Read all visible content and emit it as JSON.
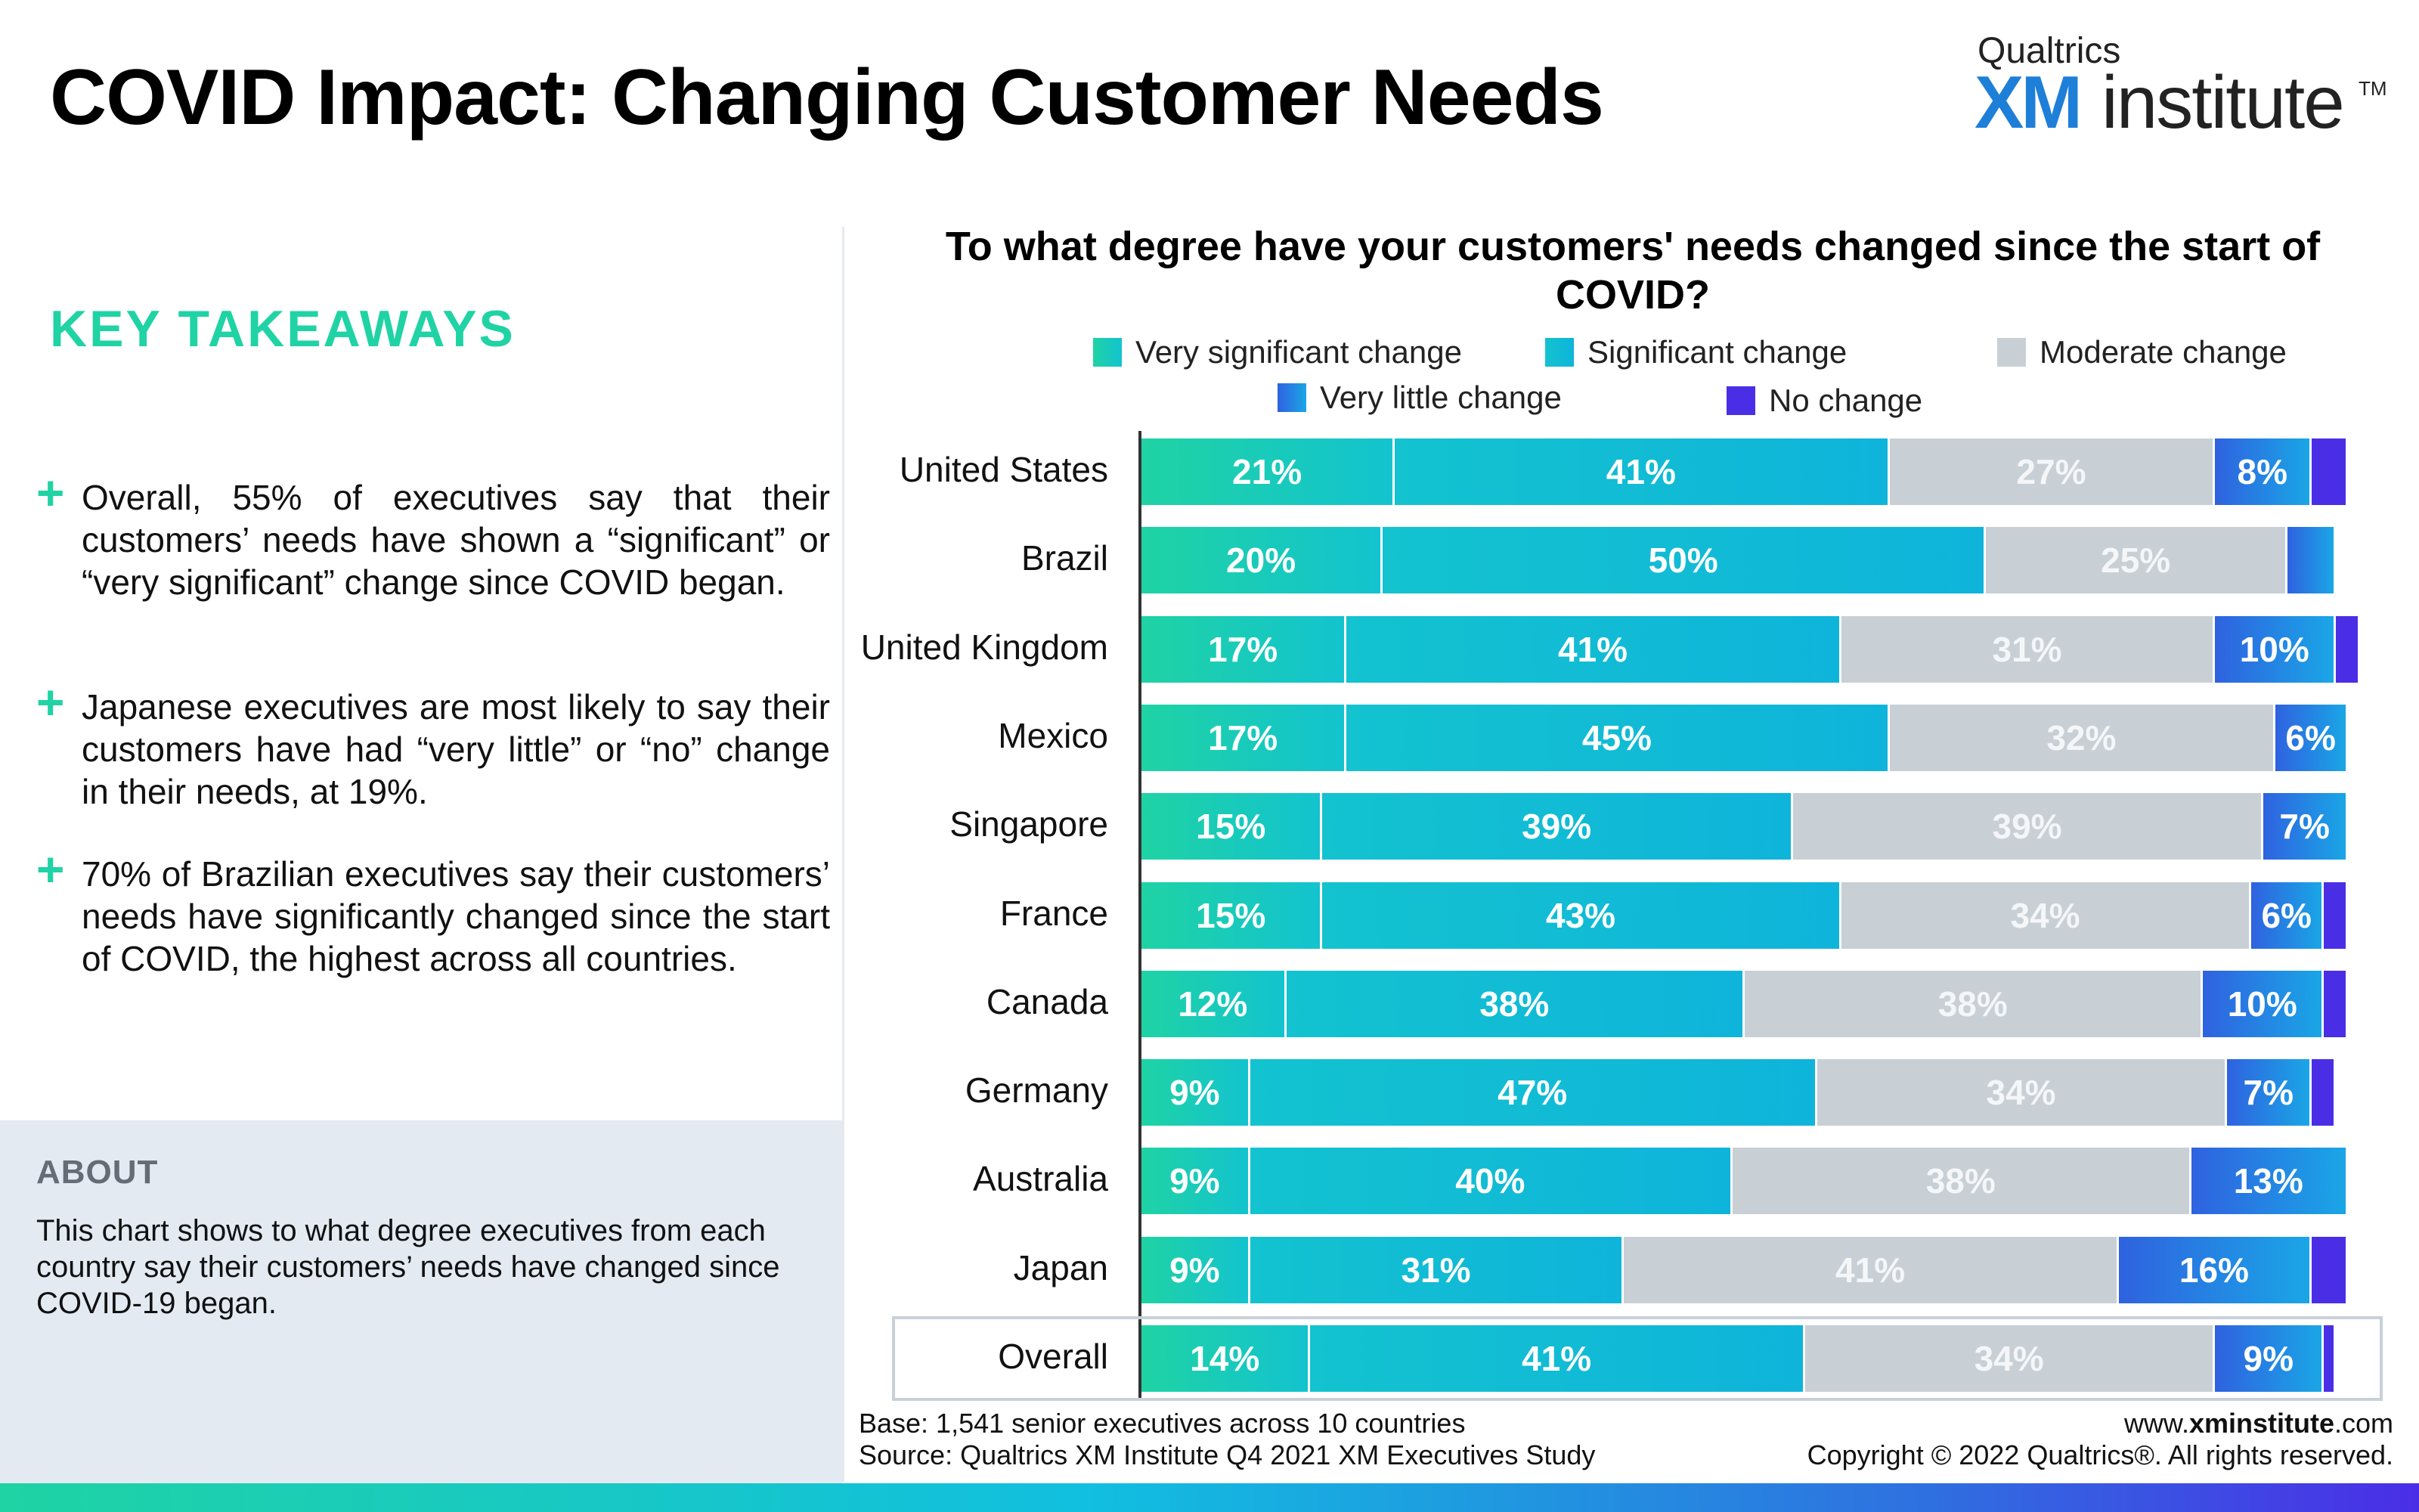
{
  "header": {
    "title": "COVID Impact: Changing Customer Needs",
    "logo_top": "Qualtrics",
    "logo_xm": "XM",
    "logo_institute": "institute",
    "logo_tm": "TM"
  },
  "takeaways": {
    "heading": "KEY TAKEAWAYS",
    "plus_glyph": "+",
    "items": [
      "Overall, 55% of executives say that their customers’ needs have shown a “significant” or “very significant” change since COVID began.",
      "Japanese executives are most likely to say their customers have had “very little” or “no” change in their needs, at 19%.",
      "70% of Brazilian executives say their customers’ needs have significantly changed since the start of COVID, the highest across all countries."
    ]
  },
  "about": {
    "heading": "ABOUT",
    "text": "This chart shows to what degree executives from each country say their customers’ needs have changed since COVID-19 began."
  },
  "footer": {
    "base": "Base: 1,541 senior executives across 10 countries",
    "source": "Source: Qualtrics XM Institute Q4 2021 XM Executives Study",
    "url_prefix": "www.",
    "url_bold": "xminstitute",
    "url_suffix": ".com",
    "copyright": "Copyright © 2022 Qualtrics®. All rights reserved."
  },
  "colors": {
    "very_significant": "#1fd3a4",
    "significant": "#13c3cf",
    "moderate": "#c8d0d6",
    "very_little": "#2f62e0",
    "no_change": "#4a2ee6",
    "accent": "#1fd3a4"
  },
  "chart_data": {
    "type": "bar",
    "orientation": "horizontal",
    "stacked": true,
    "title": "To what degree have your customers' needs changed since the start of COVID?",
    "categories": [
      "United States",
      "Brazil",
      "United Kingdom",
      "Mexico",
      "Singapore",
      "France",
      "Canada",
      "Germany",
      "Australia",
      "Japan",
      "Overall"
    ],
    "series": [
      {
        "name": "Very significant change",
        "values": [
          21,
          20,
          17,
          17,
          15,
          15,
          12,
          9,
          9,
          9,
          14
        ]
      },
      {
        "name": "Significant change",
        "values": [
          41,
          50,
          41,
          45,
          39,
          43,
          38,
          47,
          40,
          31,
          41
        ]
      },
      {
        "name": "Moderate change",
        "values": [
          27,
          25,
          31,
          32,
          39,
          34,
          38,
          34,
          38,
          41,
          34
        ]
      },
      {
        "name": "Very little change",
        "values": [
          8,
          4,
          10,
          6,
          7,
          6,
          10,
          7,
          13,
          16,
          9
        ]
      },
      {
        "name": "No change",
        "values": [
          3,
          0,
          2,
          0,
          0,
          2,
          2,
          2,
          0,
          3,
          1
        ]
      }
    ],
    "labels": [
      [
        "21%",
        "41%",
        "27%",
        "8%",
        ""
      ],
      [
        "20%",
        "50%",
        "25%",
        "",
        ""
      ],
      [
        "17%",
        "41%",
        "31%",
        "10%",
        ""
      ],
      [
        "17%",
        "45%",
        "32%",
        "6%",
        ""
      ],
      [
        "15%",
        "39%",
        "39%",
        "7%",
        ""
      ],
      [
        "15%",
        "43%",
        "34%",
        "6%",
        ""
      ],
      [
        "12%",
        "38%",
        "38%",
        "10%",
        ""
      ],
      [
        "9%",
        "47%",
        "34%",
        "7%",
        ""
      ],
      [
        "9%",
        "40%",
        "38%",
        "13%",
        ""
      ],
      [
        "9%",
        "31%",
        "41%",
        "16%",
        ""
      ],
      [
        "14%",
        "41%",
        "34%",
        "9%",
        ""
      ]
    ],
    "xlim": [
      0,
      100
    ],
    "legend_position": "top",
    "grid": false
  }
}
